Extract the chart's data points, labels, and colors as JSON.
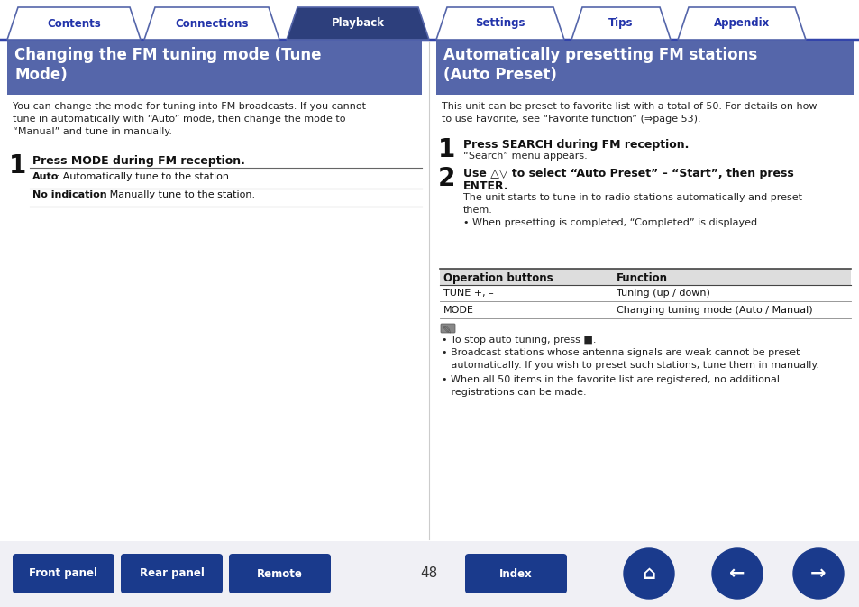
{
  "bg_color": "#ffffff",
  "tab_active_bg": "#2d3f7c",
  "tab_inactive_bg": "#ffffff",
  "tab_border_color": "#5566aa",
  "tab_text_active": "#ffffff",
  "tab_text_inactive": "#2233aa",
  "tabs": [
    "Contents",
    "Connections",
    "Playback",
    "Settings",
    "Tips",
    "Appendix"
  ],
  "active_tab": 2,
  "header_bg": "#5566aa",
  "header_text_color": "#ffffff",
  "left_title_line1": "Changing the FM tuning mode (Tune",
  "left_title_line2": "Mode)",
  "right_title_line1": "Automatically presetting FM stations",
  "right_title_line2": "(Auto Preset)",
  "left_body_lines": [
    "You can change the mode for tuning into FM broadcasts. If you cannot",
    "tune in automatically with “Auto” mode, then change the mode to",
    "“Manual” and tune in manually."
  ],
  "left_step1_bold": "Press MODE during FM reception.",
  "left_table_rows": [
    [
      "Auto",
      " : Automatically tune to the station."
    ],
    [
      "No indication",
      " : Manually tune to the station."
    ]
  ],
  "right_body_lines": [
    "This unit can be preset to favorite list with a total of 50. For details on how",
    "to use Favorite, see “Favorite function” (⇒page 53)."
  ],
  "right_step1_bold": "Press SEARCH during FM reception.",
  "right_step1_sub": "“Search” menu appears.",
  "right_step2_bold_line1": "Use △▽ to select “Auto Preset” – “Start”, then press",
  "right_step2_bold_line2": "ENTER.",
  "right_step2_sub_lines": [
    "The unit starts to tune in to radio stations automatically and preset",
    "them.",
    "• When presetting is completed, “Completed” is displayed."
  ],
  "right_table_header": [
    "Operation buttons",
    "Function"
  ],
  "right_table_rows": [
    [
      "TUNE +, –",
      "Tuning (up / down)"
    ],
    [
      "MODE",
      "Changing tuning mode (Auto / Manual)"
    ]
  ],
  "right_note1": "• To stop auto tuning, press ■.",
  "right_note2_lines": [
    "• Broadcast stations whose antenna signals are weak cannot be preset",
    "   automatically. If you wish to preset such stations, tune them in manually."
  ],
  "right_note3_lines": [
    "• When all 50 items in the favorite list are registered, no additional",
    "   registrations can be made."
  ],
  "footer_buttons_left": [
    "Front panel",
    "Rear panel",
    "Remote"
  ],
  "footer_button_index": "Index",
  "footer_page": "48",
  "footer_btn_color": "#1a3a8c",
  "footer_text_color": "#ffffff",
  "divider_color": "#3344aa",
  "text_color": "#222222",
  "table_line_color": "#666666",
  "table_header_bg": "#dddddd"
}
